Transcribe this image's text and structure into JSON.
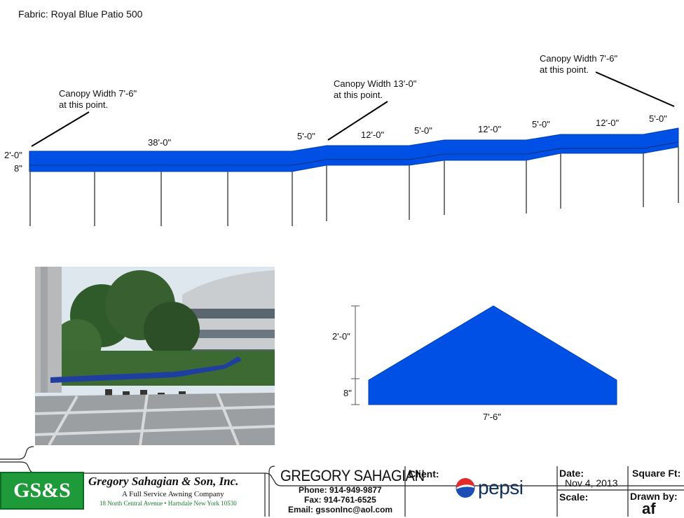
{
  "fabric_label": "Fabric: Royal Blue Patio 500",
  "colors": {
    "canopy": "#0050e6",
    "canopy_edge": "#003fb0",
    "frame": "#555555",
    "logo_green": "#1f9a3a"
  },
  "notes": {
    "left": [
      "Canopy Width 7'-6\"",
      "at this point."
    ],
    "middle": [
      "Canopy Width 13'-0\"",
      "at this point."
    ],
    "right": [
      "Canopy Width 7'-6\"",
      "at this point."
    ]
  },
  "elevation": {
    "height_labels": [
      "2'-0\"",
      "8\""
    ],
    "segments": [
      "38'-0\"",
      "5'-0\"",
      "12'-0\"",
      "5'-0\"",
      "12'-0\"",
      "5'-0\"",
      "12'-0\"",
      "5'-0\""
    ]
  },
  "profile": {
    "height_labels": [
      "2'-0\"",
      "8\""
    ],
    "width_label": "7'-6\""
  },
  "photo": {
    "icon": "site-photo"
  },
  "title_block": {
    "logo_text": "GS&S",
    "company_name": "Gregory Sahagian & Son, Inc.",
    "company_tagline": "A Full Service Awning Company",
    "company_address": "18 North Central Avenue • Hartsdale  New York 10530",
    "contact_name": "GREGORY SAHAGIAN",
    "phone": "Phone: 914-949-9877",
    "fax": "Fax: 914-761-6525",
    "email": "Email: gssonInc@aol.com",
    "client_label": "Client:",
    "client_name": "pepsi",
    "date_label": "Date:",
    "date_value": "Nov 4, 2013",
    "scale_label": "Scale:",
    "square_ft_label": "Square Ft:",
    "drawn_by_label": "Drawn by:",
    "drawn_by_value": "af"
  }
}
